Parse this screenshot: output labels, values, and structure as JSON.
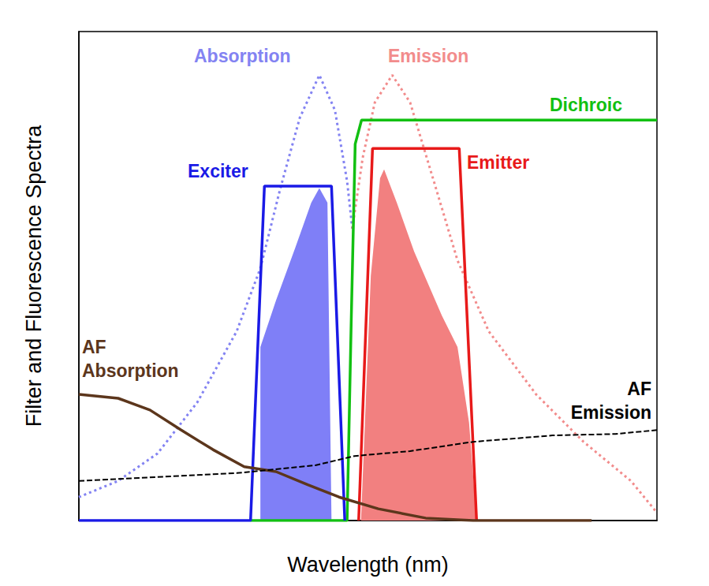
{
  "chart_data": {
    "type": "line",
    "x_label": "Wavelength (nm)",
    "y_label": "Filter and Fluorescence Spectra",
    "xlim": [
      0,
      100
    ],
    "ylim": [
      0,
      100
    ],
    "tick_labels": false,
    "grid": false,
    "series": [
      {
        "type": "area",
        "color": "#7f7ff7",
        "x": [
          31.4,
          31.4,
          34.1,
          37.5,
          40.2,
          41.6,
          43.0,
          43.7
        ],
        "values": [
          0,
          35.5,
          45,
          56,
          65,
          68,
          65,
          0
        ]
      },
      {
        "type": "area",
        "color": "#f28080",
        "x": [
          48.8,
          50.5,
          52.1,
          52.8,
          55.0,
          58.0,
          62.8,
          65.5,
          67.5,
          68.8
        ],
        "values": [
          0,
          50,
          70,
          71.8,
          65,
          55,
          41.9,
          35.5,
          20,
          0
        ]
      },
      {
        "name": "Absorption",
        "type": "line",
        "color": "#8383f2",
        "line_style": "dotted",
        "x": [
          0,
          6.8,
          13.6,
          20.5,
          27.3,
          31.4,
          34.8,
          38.2,
          41.6,
          44.3,
          46.4,
          47.3
        ],
        "values": [
          4.8,
          8.1,
          13.7,
          24.2,
          38.7,
          51.6,
          67.7,
          82.3,
          91.1,
          83.9,
          69.4,
          59.7
        ]
      },
      {
        "name": "Emission",
        "type": "line",
        "color": "#f28c8c",
        "line_style": "dotted",
        "x": [
          47.3,
          49.1,
          51.2,
          54.2,
          57.3,
          61.4,
          65.5,
          70.9,
          79.1,
          87.3,
          95.5,
          100
        ],
        "values": [
          59.7,
          74.2,
          85.5,
          91.1,
          85.5,
          69.4,
          53.2,
          38.7,
          25.8,
          16.1,
          8.1,
          1.6
        ]
      },
      {
        "name": "Dichroic",
        "type": "line",
        "color": "#12c012",
        "line_style": "solid",
        "x": [
          29.7,
          46.4,
          47.1,
          47.8,
          48.9,
          100
        ],
        "values": [
          0,
          0,
          40,
          77,
          81.9,
          81.9
        ]
      },
      {
        "name": "Exciter",
        "type": "line",
        "color": "#1a1ae6",
        "line_style": "solid",
        "x": [
          0,
          29.7,
          32.1,
          43.7,
          46.0
        ],
        "values": [
          0,
          0,
          68.4,
          68.4,
          0
        ]
      },
      {
        "name": "Emitter",
        "type": "line",
        "color": "#e81a1a",
        "line_style": "solid",
        "x": [
          48.4,
          50.8,
          65.8,
          68.8
        ],
        "values": [
          0,
          76.1,
          76.1,
          0
        ]
      },
      {
        "name": "AF\nAbsorption",
        "type": "line",
        "color": "#5c361c",
        "line_style": "solid",
        "x": [
          0,
          6.8,
          12.3,
          17.7,
          23.2,
          28.6,
          34.1,
          39.6,
          45.0,
          51.8,
          60.0,
          68.2,
          88.7
        ],
        "values": [
          25.8,
          25.0,
          22.6,
          18.5,
          14.5,
          11.0,
          10.0,
          7.3,
          4.8,
          2.4,
          0.5,
          0,
          0
        ]
      },
      {
        "name": "AF\nEmission",
        "type": "line",
        "color": "#000000",
        "line_style": "dashed",
        "x": [
          0,
          27.3,
          40.9,
          47.7,
          57.3,
          68.2,
          81.9,
          92.8,
          100
        ],
        "values": [
          8.1,
          9.7,
          11.3,
          13.2,
          14.2,
          16.1,
          17.4,
          17.7,
          18.5
        ]
      }
    ]
  }
}
